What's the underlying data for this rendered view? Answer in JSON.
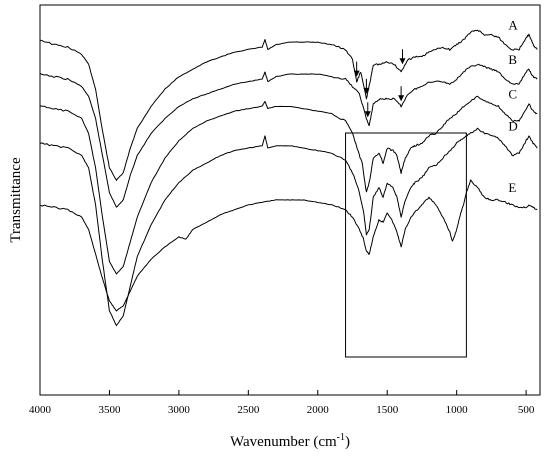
{
  "chart_data": {
    "type": "line",
    "title": "",
    "xlabel": "Wavenumber (cm",
    "xlabel_sup": "-1",
    "xlabel_close": ")",
    "ylabel": "Transmittance",
    "x_reversed": true,
    "xlim": [
      4000,
      400
    ],
    "x_ticks": [
      4000,
      3500,
      3000,
      2500,
      2000,
      1500,
      1000,
      500
    ],
    "y_ticks_shown": false,
    "grid": false,
    "highlight_box_x_range": [
      1800,
      930
    ],
    "arrow_markers": [
      {
        "curve": "A",
        "x": 1720
      },
      {
        "curve": "A",
        "x": 1650
      },
      {
        "curve": "A",
        "x": 1390
      },
      {
        "curve": "B",
        "x": 1640
      },
      {
        "curve": "B",
        "x": 1400
      }
    ],
    "series": [
      {
        "name": "A",
        "points": [
          [
            4000,
            0.82
          ],
          [
            3900,
            0.8
          ],
          [
            3800,
            0.79
          ],
          [
            3700,
            0.76
          ],
          [
            3650,
            0.72
          ],
          [
            3600,
            0.62
          ],
          [
            3550,
            0.45
          ],
          [
            3500,
            0.3
          ],
          [
            3450,
            0.25
          ],
          [
            3400,
            0.28
          ],
          [
            3350,
            0.38
          ],
          [
            3300,
            0.46
          ],
          [
            3200,
            0.55
          ],
          [
            3100,
            0.62
          ],
          [
            3000,
            0.67
          ],
          [
            2900,
            0.7
          ],
          [
            2800,
            0.73
          ],
          [
            2700,
            0.75
          ],
          [
            2600,
            0.77
          ],
          [
            2500,
            0.78
          ],
          [
            2400,
            0.79
          ],
          [
            2380,
            0.82
          ],
          [
            2360,
            0.78
          ],
          [
            2300,
            0.8
          ],
          [
            2200,
            0.81
          ],
          [
            2100,
            0.81
          ],
          [
            2000,
            0.81
          ],
          [
            1900,
            0.8
          ],
          [
            1800,
            0.78
          ],
          [
            1750,
            0.74
          ],
          [
            1720,
            0.65
          ],
          [
            1690,
            0.69
          ],
          [
            1650,
            0.58
          ],
          [
            1620,
            0.66
          ],
          [
            1600,
            0.72
          ],
          [
            1550,
            0.72
          ],
          [
            1500,
            0.73
          ],
          [
            1450,
            0.72
          ],
          [
            1400,
            0.69
          ],
          [
            1350,
            0.74
          ],
          [
            1300,
            0.75
          ],
          [
            1250,
            0.75
          ],
          [
            1200,
            0.77
          ],
          [
            1100,
            0.79
          ],
          [
            1050,
            0.78
          ],
          [
            1000,
            0.8
          ],
          [
            950,
            0.82
          ],
          [
            900,
            0.85
          ],
          [
            850,
            0.86
          ],
          [
            800,
            0.84
          ],
          [
            750,
            0.84
          ],
          [
            700,
            0.83
          ],
          [
            650,
            0.8
          ],
          [
            600,
            0.78
          ],
          [
            550,
            0.78
          ],
          [
            500,
            0.83
          ],
          [
            480,
            0.84
          ],
          [
            450,
            0.8
          ],
          [
            420,
            0.78
          ]
        ]
      },
      {
        "name": "B",
        "points": [
          [
            4000,
            0.68
          ],
          [
            3900,
            0.67
          ],
          [
            3800,
            0.66
          ],
          [
            3700,
            0.63
          ],
          [
            3650,
            0.59
          ],
          [
            3600,
            0.5
          ],
          [
            3550,
            0.35
          ],
          [
            3500,
            0.2
          ],
          [
            3450,
            0.14
          ],
          [
            3400,
            0.17
          ],
          [
            3350,
            0.27
          ],
          [
            3300,
            0.35
          ],
          [
            3200,
            0.44
          ],
          [
            3100,
            0.5
          ],
          [
            3000,
            0.55
          ],
          [
            2900,
            0.58
          ],
          [
            2800,
            0.6
          ],
          [
            2700,
            0.62
          ],
          [
            2600,
            0.64
          ],
          [
            2500,
            0.65
          ],
          [
            2400,
            0.66
          ],
          [
            2380,
            0.69
          ],
          [
            2360,
            0.65
          ],
          [
            2300,
            0.67
          ],
          [
            2200,
            0.68
          ],
          [
            2100,
            0.68
          ],
          [
            2000,
            0.68
          ],
          [
            1900,
            0.67
          ],
          [
            1800,
            0.66
          ],
          [
            1750,
            0.63
          ],
          [
            1700,
            0.6
          ],
          [
            1650,
            0.5
          ],
          [
            1630,
            0.47
          ],
          [
            1600,
            0.56
          ],
          [
            1550,
            0.58
          ],
          [
            1500,
            0.58
          ],
          [
            1450,
            0.58
          ],
          [
            1400,
            0.55
          ],
          [
            1350,
            0.6
          ],
          [
            1300,
            0.62
          ],
          [
            1250,
            0.63
          ],
          [
            1200,
            0.65
          ],
          [
            1100,
            0.65
          ],
          [
            1050,
            0.64
          ],
          [
            1000,
            0.66
          ],
          [
            950,
            0.69
          ],
          [
            900,
            0.71
          ],
          [
            850,
            0.72
          ],
          [
            800,
            0.71
          ],
          [
            750,
            0.7
          ],
          [
            700,
            0.69
          ],
          [
            650,
            0.66
          ],
          [
            600,
            0.64
          ],
          [
            550,
            0.64
          ],
          [
            500,
            0.69
          ],
          [
            480,
            0.7
          ],
          [
            450,
            0.67
          ],
          [
            420,
            0.66
          ]
        ]
      },
      {
        "name": "C",
        "points": [
          [
            4000,
            0.55
          ],
          [
            3900,
            0.54
          ],
          [
            3800,
            0.53
          ],
          [
            3700,
            0.5
          ],
          [
            3650,
            0.44
          ],
          [
            3600,
            0.3
          ],
          [
            3550,
            0.1
          ],
          [
            3500,
            -0.08
          ],
          [
            3450,
            -0.13
          ],
          [
            3400,
            -0.1
          ],
          [
            3350,
            0.0
          ],
          [
            3300,
            0.1
          ],
          [
            3200,
            0.24
          ],
          [
            3100,
            0.34
          ],
          [
            3000,
            0.41
          ],
          [
            2900,
            0.46
          ],
          [
            2800,
            0.49
          ],
          [
            2700,
            0.51
          ],
          [
            2600,
            0.53
          ],
          [
            2500,
            0.54
          ],
          [
            2400,
            0.55
          ],
          [
            2380,
            0.57
          ],
          [
            2360,
            0.54
          ],
          [
            2300,
            0.55
          ],
          [
            2200,
            0.55
          ],
          [
            2100,
            0.54
          ],
          [
            2000,
            0.53
          ],
          [
            1900,
            0.52
          ],
          [
            1800,
            0.49
          ],
          [
            1750,
            0.44
          ],
          [
            1700,
            0.35
          ],
          [
            1680,
            0.32
          ],
          [
            1650,
            0.2
          ],
          [
            1630,
            0.24
          ],
          [
            1600,
            0.34
          ],
          [
            1560,
            0.36
          ],
          [
            1530,
            0.32
          ],
          [
            1500,
            0.38
          ],
          [
            1460,
            0.37
          ],
          [
            1430,
            0.35
          ],
          [
            1400,
            0.28
          ],
          [
            1370,
            0.34
          ],
          [
            1330,
            0.38
          ],
          [
            1300,
            0.39
          ],
          [
            1250,
            0.4
          ],
          [
            1200,
            0.43
          ],
          [
            1150,
            0.44
          ],
          [
            1100,
            0.47
          ],
          [
            1050,
            0.5
          ],
          [
            1000,
            0.52
          ],
          [
            950,
            0.55
          ],
          [
            900,
            0.57
          ],
          [
            850,
            0.59
          ],
          [
            800,
            0.57
          ],
          [
            750,
            0.56
          ],
          [
            700,
            0.55
          ],
          [
            650,
            0.52
          ],
          [
            600,
            0.49
          ],
          [
            550,
            0.49
          ],
          [
            500,
            0.54
          ],
          [
            480,
            0.56
          ],
          [
            450,
            0.53
          ],
          [
            420,
            0.52
          ]
        ]
      },
      {
        "name": "D",
        "points": [
          [
            4000,
            0.4
          ],
          [
            3900,
            0.39
          ],
          [
            3800,
            0.38
          ],
          [
            3700,
            0.35
          ],
          [
            3650,
            0.3
          ],
          [
            3600,
            0.15
          ],
          [
            3550,
            -0.08
          ],
          [
            3500,
            -0.28
          ],
          [
            3450,
            -0.34
          ],
          [
            3400,
            -0.3
          ],
          [
            3350,
            -0.18
          ],
          [
            3300,
            -0.06
          ],
          [
            3200,
            0.07
          ],
          [
            3100,
            0.17
          ],
          [
            3000,
            0.24
          ],
          [
            2900,
            0.29
          ],
          [
            2800,
            0.32
          ],
          [
            2700,
            0.35
          ],
          [
            2600,
            0.37
          ],
          [
            2500,
            0.38
          ],
          [
            2400,
            0.39
          ],
          [
            2380,
            0.43
          ],
          [
            2360,
            0.38
          ],
          [
            2300,
            0.39
          ],
          [
            2200,
            0.39
          ],
          [
            2100,
            0.38
          ],
          [
            2000,
            0.37
          ],
          [
            1900,
            0.36
          ],
          [
            1800,
            0.33
          ],
          [
            1750,
            0.28
          ],
          [
            1700,
            0.2
          ],
          [
            1670,
            0.12
          ],
          [
            1650,
            0.03
          ],
          [
            1630,
            0.05
          ],
          [
            1600,
            0.18
          ],
          [
            1560,
            0.22
          ],
          [
            1530,
            0.18
          ],
          [
            1500,
            0.24
          ],
          [
            1460,
            0.22
          ],
          [
            1430,
            0.18
          ],
          [
            1400,
            0.1
          ],
          [
            1370,
            0.17
          ],
          [
            1330,
            0.22
          ],
          [
            1300,
            0.24
          ],
          [
            1250,
            0.26
          ],
          [
            1200,
            0.3
          ],
          [
            1150,
            0.31
          ],
          [
            1100,
            0.34
          ],
          [
            1050,
            0.37
          ],
          [
            1000,
            0.4
          ],
          [
            950,
            0.42
          ],
          [
            900,
            0.44
          ],
          [
            850,
            0.46
          ],
          [
            800,
            0.44
          ],
          [
            750,
            0.43
          ],
          [
            700,
            0.42
          ],
          [
            650,
            0.39
          ],
          [
            600,
            0.35
          ],
          [
            550,
            0.36
          ],
          [
            500,
            0.41
          ],
          [
            480,
            0.43
          ],
          [
            450,
            0.4
          ],
          [
            420,
            0.38
          ]
        ]
      },
      {
        "name": "E",
        "points": [
          [
            4000,
            0.15
          ],
          [
            3900,
            0.14
          ],
          [
            3800,
            0.13
          ],
          [
            3700,
            0.1
          ],
          [
            3650,
            0.05
          ],
          [
            3600,
            -0.05
          ],
          [
            3550,
            -0.15
          ],
          [
            3500,
            -0.24
          ],
          [
            3450,
            -0.28
          ],
          [
            3400,
            -0.26
          ],
          [
            3350,
            -0.2
          ],
          [
            3300,
            -0.14
          ],
          [
            3200,
            -0.07
          ],
          [
            3100,
            -0.02
          ],
          [
            3000,
            0.02
          ],
          [
            2950,
            0.01
          ],
          [
            2900,
            0.05
          ],
          [
            2800,
            0.08
          ],
          [
            2700,
            0.11
          ],
          [
            2600,
            0.13
          ],
          [
            2500,
            0.15
          ],
          [
            2400,
            0.16
          ],
          [
            2300,
            0.17
          ],
          [
            2200,
            0.17
          ],
          [
            2100,
            0.17
          ],
          [
            2000,
            0.16
          ],
          [
            1900,
            0.15
          ],
          [
            1800,
            0.13
          ],
          [
            1750,
            0.1
          ],
          [
            1700,
            0.05
          ],
          [
            1670,
            0.01
          ],
          [
            1650,
            -0.04
          ],
          [
            1630,
            -0.05
          ],
          [
            1600,
            0.02
          ],
          [
            1560,
            0.09
          ],
          [
            1530,
            0.08
          ],
          [
            1500,
            0.12
          ],
          [
            1460,
            0.08
          ],
          [
            1430,
            0.04
          ],
          [
            1400,
            -0.02
          ],
          [
            1370,
            0.05
          ],
          [
            1330,
            0.1
          ],
          [
            1300,
            0.12
          ],
          [
            1250,
            0.15
          ],
          [
            1200,
            0.18
          ],
          [
            1150,
            0.15
          ],
          [
            1100,
            0.1
          ],
          [
            1050,
            0.04
          ],
          [
            1030,
            0.0
          ],
          [
            1000,
            0.05
          ],
          [
            970,
            0.12
          ],
          [
            950,
            0.15
          ],
          [
            930,
            0.2
          ],
          [
            900,
            0.25
          ],
          [
            850,
            0.22
          ],
          [
            800,
            0.18
          ],
          [
            750,
            0.17
          ],
          [
            700,
            0.17
          ],
          [
            650,
            0.16
          ],
          [
            600,
            0.15
          ],
          [
            550,
            0.14
          ],
          [
            500,
            0.14
          ],
          [
            480,
            0.15
          ],
          [
            450,
            0.14
          ],
          [
            420,
            0.13
          ]
        ]
      }
    ]
  }
}
